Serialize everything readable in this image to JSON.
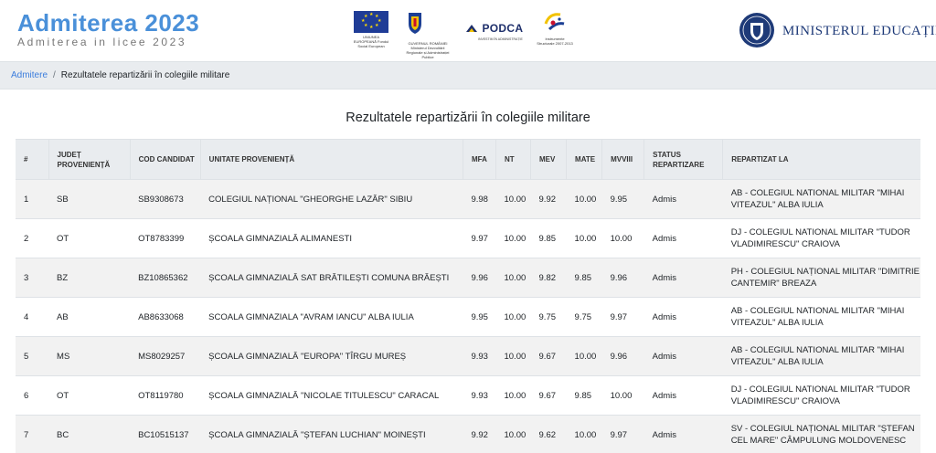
{
  "header": {
    "title": "Admiterea 2023",
    "subtitle": "Admiterea in licee 2023",
    "partners": [
      {
        "icon": "eu-flag-icon",
        "caption": "UNIUNEA EUROPEANĂ Fondul Social European"
      },
      {
        "icon": "romania-crest-icon",
        "caption": "GUVERNUL ROMÂNIEI Ministerul Dezvoltării Regionale și Administrației Publice"
      },
      {
        "icon": "podca-logo-icon",
        "label": "PODCA",
        "caption": "INVESTIM ÎN ADMINISTRAȚIE"
      },
      {
        "icon": "structural-funds-icon",
        "caption": "Instrumente Structurale 2007-2013"
      }
    ],
    "ministry": {
      "icon": "ministry-seal-icon",
      "label": "MINISTERUL EDUCAȚIEI"
    }
  },
  "breadcrumb": {
    "home": "Admitere",
    "separator": "/",
    "current": "Rezultatele repartizării în colegiile militare"
  },
  "page_title": "Rezultatele repartizării în colegiile militare",
  "table": {
    "headers": [
      "#",
      "JUDEȚ PROVENIENȚĂ",
      "COD CANDIDAT",
      "UNITATE PROVENIENȚĂ",
      "MFA",
      "NT",
      "MEV",
      "MATE",
      "MVVIII",
      "STATUS REPARTIZARE",
      "REPARTIZAT LA"
    ],
    "rows": [
      [
        "1",
        "SB",
        "SB9308673",
        "COLEGIUL NAȚIONAL \"GHEORGHE LAZĂR\" SIBIU",
        "9.98",
        "10.00",
        "9.92",
        "10.00",
        "9.95",
        "Admis",
        "AB - COLEGIUL NATIONAL MILITAR \"MIHAI VITEAZUL\" ALBA IULIA"
      ],
      [
        "2",
        "OT",
        "OT8783399",
        "ȘCOALA GIMNAZIALĂ ALIMANESTI",
        "9.97",
        "10.00",
        "9.85",
        "10.00",
        "10.00",
        "Admis",
        "DJ - COLEGIUL NATIONAL MILITAR \"TUDOR VLADIMIRESCU\" CRAIOVA"
      ],
      [
        "3",
        "BZ",
        "BZ10865362",
        "ȘCOALA GIMNAZIALĂ SAT BRĂTILEȘTI COMUNA BRĂEȘTI",
        "9.96",
        "10.00",
        "9.82",
        "9.85",
        "9.96",
        "Admis",
        "PH - COLEGIUL NAȚIONAL MILITAR \"DIMITRIE CANTEMIR\" BREAZA"
      ],
      [
        "4",
        "AB",
        "AB8633068",
        "SCOALA GIMNAZIALA \"AVRAM IANCU\" ALBA IULIA",
        "9.95",
        "10.00",
        "9.75",
        "9.75",
        "9.97",
        "Admis",
        "AB - COLEGIUL NATIONAL MILITAR \"MIHAI VITEAZUL\" ALBA IULIA"
      ],
      [
        "5",
        "MS",
        "MS8029257",
        "ȘCOALA GIMNAZIALĂ \"EUROPA\" TÎRGU MUREȘ",
        "9.93",
        "10.00",
        "9.67",
        "10.00",
        "9.96",
        "Admis",
        "AB - COLEGIUL NATIONAL MILITAR \"MIHAI VITEAZUL\" ALBA IULIA"
      ],
      [
        "6",
        "OT",
        "OT8119780",
        "ȘCOALA GIMNAZIALĂ \"NICOLAE TITULESCU\" CARACAL",
        "9.93",
        "10.00",
        "9.67",
        "9.85",
        "10.00",
        "Admis",
        "DJ - COLEGIUL NATIONAL MILITAR \"TUDOR VLADIMIRESCU\" CRAIOVA"
      ],
      [
        "7",
        "BC",
        "BC10515137",
        "ȘCOALA GIMNAZIALĂ \"ȘTEFAN LUCHIAN\" MOINEȘTI",
        "9.92",
        "10.00",
        "9.62",
        "10.00",
        "9.97",
        "Admis",
        "SV - COLEGIUL NAȚIONAL MILITAR \"ȘTEFAN CEL MARE\" CÂMPULUNG MOLDOVENESC"
      ]
    ]
  }
}
